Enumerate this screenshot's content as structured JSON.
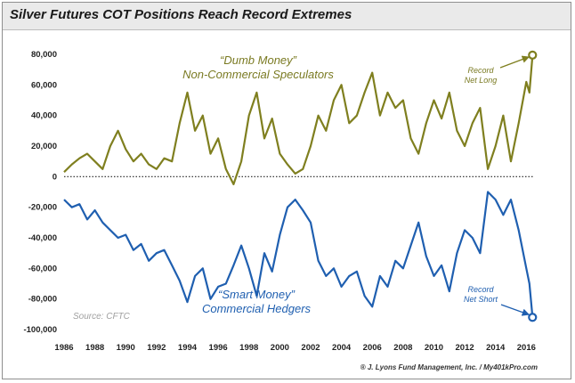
{
  "title": "Silver Futures COT Positions Reach Record Extremes",
  "footer": "® J. Lyons Fund Management, Inc. / My401kPro.com",
  "source": "Source: CFTC",
  "colors": {
    "noncommercial": "#7f7f1f",
    "commercial": "#1f5fb0",
    "zero_line": "#222222"
  },
  "chart_data": {
    "type": "line",
    "title": "Silver Futures COT Positions Reach Record Extremes",
    "xlabel": "",
    "ylabel": "",
    "xlim": [
      1986,
      2016.5
    ],
    "ylim": [
      -100000,
      80000
    ],
    "grid": false,
    "zero_line": "dotted",
    "x_ticks": [
      "1986",
      "1988",
      "1990",
      "1992",
      "1994",
      "1996",
      "1998",
      "2000",
      "2002",
      "2004",
      "2006",
      "2008",
      "2010",
      "2012",
      "2014",
      "2016"
    ],
    "y_ticks": [
      "80,000",
      "60,000",
      "40,000",
      "20,000",
      "0",
      "-20,000",
      "-40,000",
      "-60,000",
      "-80,000",
      "-100,000"
    ],
    "x": [
      1986.0,
      1986.5,
      1987.0,
      1987.5,
      1988.0,
      1988.5,
      1989.0,
      1989.5,
      1990.0,
      1990.5,
      1991.0,
      1991.5,
      1992.0,
      1992.5,
      1993.0,
      1993.5,
      1994.0,
      1994.5,
      1995.0,
      1995.5,
      1996.0,
      1996.5,
      1997.0,
      1997.5,
      1998.0,
      1998.5,
      1999.0,
      1999.5,
      2000.0,
      2000.5,
      2001.0,
      2001.5,
      2002.0,
      2002.5,
      2003.0,
      2003.5,
      2004.0,
      2004.5,
      2005.0,
      2005.5,
      2006.0,
      2006.5,
      2007.0,
      2007.5,
      2008.0,
      2008.5,
      2009.0,
      2009.5,
      2010.0,
      2010.5,
      2011.0,
      2011.5,
      2012.0,
      2012.5,
      2013.0,
      2013.5,
      2014.0,
      2014.5,
      2015.0,
      2015.5,
      2016.0,
      2016.2,
      2016.4
    ],
    "series": [
      {
        "name": "Non-Commercial Speculators",
        "values": [
          3000,
          8000,
          12000,
          15000,
          10000,
          5000,
          20000,
          30000,
          18000,
          10000,
          15000,
          8000,
          5000,
          12000,
          10000,
          35000,
          55000,
          30000,
          40000,
          15000,
          25000,
          5000,
          -5000,
          10000,
          40000,
          55000,
          25000,
          38000,
          15000,
          8000,
          2000,
          5000,
          20000,
          40000,
          30000,
          50000,
          60000,
          35000,
          40000,
          55000,
          68000,
          40000,
          55000,
          45000,
          50000,
          25000,
          15000,
          35000,
          50000,
          38000,
          55000,
          30000,
          20000,
          35000,
          45000,
          5000,
          20000,
          40000,
          10000,
          35000,
          62000,
          55000,
          79500
        ]
      },
      {
        "name": "Commercial Hedgers",
        "values": [
          -15000,
          -20000,
          -18000,
          -28000,
          -22000,
          -30000,
          -35000,
          -40000,
          -38000,
          -48000,
          -44000,
          -55000,
          -50000,
          -48000,
          -58000,
          -68000,
          -82000,
          -65000,
          -60000,
          -80000,
          -72000,
          -70000,
          -58000,
          -45000,
          -60000,
          -78000,
          -50000,
          -62000,
          -38000,
          -20000,
          -15000,
          -22000,
          -30000,
          -55000,
          -65000,
          -60000,
          -72000,
          -65000,
          -62000,
          -78000,
          -85000,
          -65000,
          -72000,
          -55000,
          -60000,
          -45000,
          -30000,
          -52000,
          -65000,
          -58000,
          -75000,
          -50000,
          -35000,
          -40000,
          -50000,
          -10000,
          -15000,
          -25000,
          -15000,
          -35000,
          -60000,
          -70000,
          -92000
        ]
      }
    ],
    "annotations": [
      {
        "text": "“Dumb Money”",
        "series": "Non-Commercial Speculators"
      },
      {
        "text": "Non-Commercial Speculators",
        "series": "Non-Commercial Speculators"
      },
      {
        "text": "“Smart Money”",
        "series": "Commercial Hedgers"
      },
      {
        "text": "Commercial Hedgers",
        "series": "Commercial Hedgers"
      },
      {
        "text": "Record",
        "series": "Non-Commercial Speculators"
      },
      {
        "text": "Net Long",
        "series": "Non-Commercial Speculators"
      },
      {
        "text": "Record",
        "series": "Commercial Hedgers"
      },
      {
        "text": "Net Short",
        "series": "Commercial Hedgers"
      }
    ]
  }
}
